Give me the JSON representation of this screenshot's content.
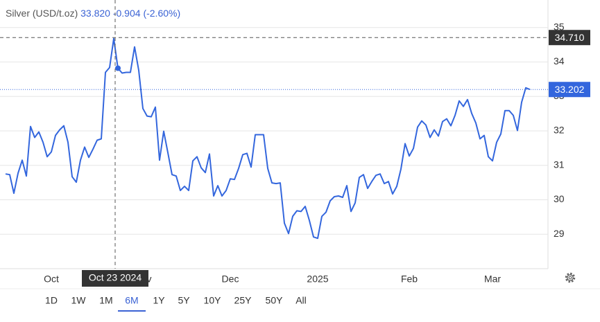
{
  "chart_data": {
    "type": "line",
    "title": "Silver (USD/t.oz)",
    "quote": {
      "price": "33.820",
      "change": "-0.904",
      "change_percent": "(-2.60%)"
    },
    "categories": [
      null,
      null,
      null,
      null,
      null,
      null,
      null,
      null,
      null,
      null,
      null,
      "Oct",
      null,
      null,
      null,
      null,
      null,
      null,
      null,
      null,
      null,
      null,
      null,
      null,
      null,
      null,
      null,
      null,
      null,
      null,
      null,
      null,
      null,
      "Nov",
      null,
      null,
      null,
      null,
      null,
      null,
      null,
      null,
      null,
      null,
      null,
      null,
      null,
      null,
      null,
      null,
      null,
      null,
      null,
      null,
      "Dec",
      null,
      null,
      null,
      null,
      null,
      null,
      null,
      null,
      null,
      null,
      null,
      null,
      null,
      null,
      null,
      null,
      null,
      null,
      null,
      null,
      "2025",
      null,
      null,
      null,
      null,
      null,
      null,
      null,
      null,
      null,
      null,
      null,
      null,
      null,
      null,
      null,
      null,
      null,
      null,
      null,
      null,
      null,
      "Feb",
      null,
      null,
      null,
      null,
      null,
      null,
      null,
      null,
      null,
      null,
      null,
      null,
      null,
      null,
      null,
      null,
      null,
      null,
      null,
      "Mar",
      null,
      null,
      null,
      null,
      null,
      null,
      null,
      null,
      null
    ],
    "series": [
      {
        "name": "Silver",
        "color": "#3366dd",
        "values": [
          30.75,
          30.73,
          30.19,
          30.77,
          31.15,
          30.69,
          32.13,
          31.81,
          31.97,
          31.67,
          31.25,
          31.39,
          31.87,
          32.03,
          32.15,
          31.67,
          30.67,
          30.51,
          31.15,
          31.53,
          31.23,
          31.47,
          31.73,
          31.77,
          33.7,
          33.84,
          34.68,
          33.82,
          33.68,
          33.7,
          33.7,
          34.44,
          33.76,
          32.65,
          32.43,
          32.41,
          32.69,
          31.15,
          31.99,
          31.37,
          30.73,
          30.69,
          30.27,
          30.39,
          30.27,
          31.13,
          31.25,
          30.93,
          30.79,
          31.33,
          30.11,
          30.41,
          30.11,
          30.27,
          30.61,
          30.59,
          30.91,
          31.31,
          31.35,
          30.95,
          31.89,
          31.89,
          31.89,
          30.91,
          30.49,
          30.47,
          30.49,
          29.32,
          29.02,
          29.52,
          29.68,
          29.66,
          29.81,
          29.4,
          28.92,
          28.88,
          29.52,
          29.64,
          29.97,
          30.09,
          30.11,
          30.07,
          30.41,
          29.66,
          29.91,
          30.65,
          30.73,
          30.33,
          30.53,
          30.71,
          30.75,
          30.47,
          30.53,
          30.17,
          30.39,
          30.89,
          31.63,
          31.27,
          31.49,
          32.11,
          32.29,
          32.17,
          31.81,
          32.03,
          31.85,
          32.27,
          32.35,
          32.15,
          32.45,
          32.87,
          32.71,
          32.91,
          32.51,
          32.23,
          31.77,
          31.87,
          31.25,
          31.13,
          31.67,
          31.91,
          32.59,
          32.59,
          32.45,
          32.01,
          32.83,
          33.25,
          33.202
        ]
      }
    ],
    "ylim": [
      28,
      35.8
    ],
    "yticks": [
      29,
      30,
      31,
      32,
      33,
      34,
      35
    ],
    "grid": true,
    "high_line": {
      "value": 34.71,
      "label": "34.710"
    },
    "crosshair_label": "Oct 23 2024",
    "range_buttons": [
      "1D",
      "1W",
      "1M",
      "6M",
      "1Y",
      "5Y",
      "10Y",
      "25Y",
      "50Y",
      "All"
    ],
    "active_range": "6M"
  }
}
